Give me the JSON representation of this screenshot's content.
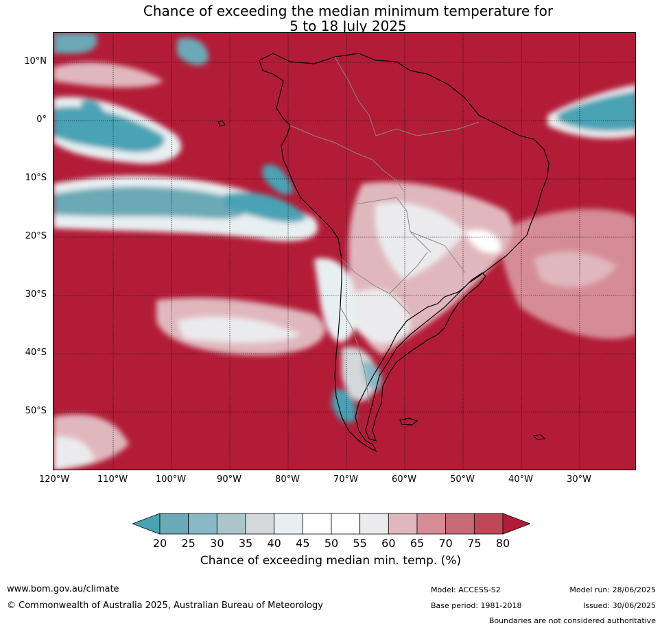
{
  "title": {
    "line1": "Chance of exceeding the median minimum temperature for",
    "line2": "5 to 18 July 2025"
  },
  "axes": {
    "latitude_labels": [
      "10°N",
      "0°",
      "10°S",
      "20°S",
      "30°S",
      "40°S",
      "50°S"
    ],
    "longitude_labels": [
      "120°W",
      "110°W",
      "100°W",
      "90°W",
      "80°W",
      "70°W",
      "60°W",
      "50°W",
      "40°W",
      "30°W"
    ]
  },
  "colorbar": {
    "tick_labels": [
      "20",
      "25",
      "30",
      "35",
      "40",
      "45",
      "50",
      "55",
      "60",
      "65",
      "70",
      "75",
      "80"
    ],
    "colors": [
      "#4aa3b4",
      "#6aa9b5",
      "#8ab8c6",
      "#aac6cb",
      "#d4d8db",
      "#e8eff2",
      "#ffffff",
      "#ffffff",
      "#ebebed",
      "#e0b7bd",
      "#d68c97",
      "#c96a77",
      "#bf4858",
      "#b21c37"
    ],
    "label": "Chance of exceeding median min. temp. (%)"
  },
  "footer": {
    "website": "www.bom.gov.au/climate",
    "copyright": "© Commonwealth of Australia 2025, Australian Bureau of Meteorology",
    "model": "Model: ACCESS-S2",
    "base_period": "Base period: 1981-2018",
    "model_run": "Model run: 28/06/2025",
    "issued": "Issued: 30/06/2025",
    "disclaimer": "Boundaries are not considered authoritative"
  }
}
